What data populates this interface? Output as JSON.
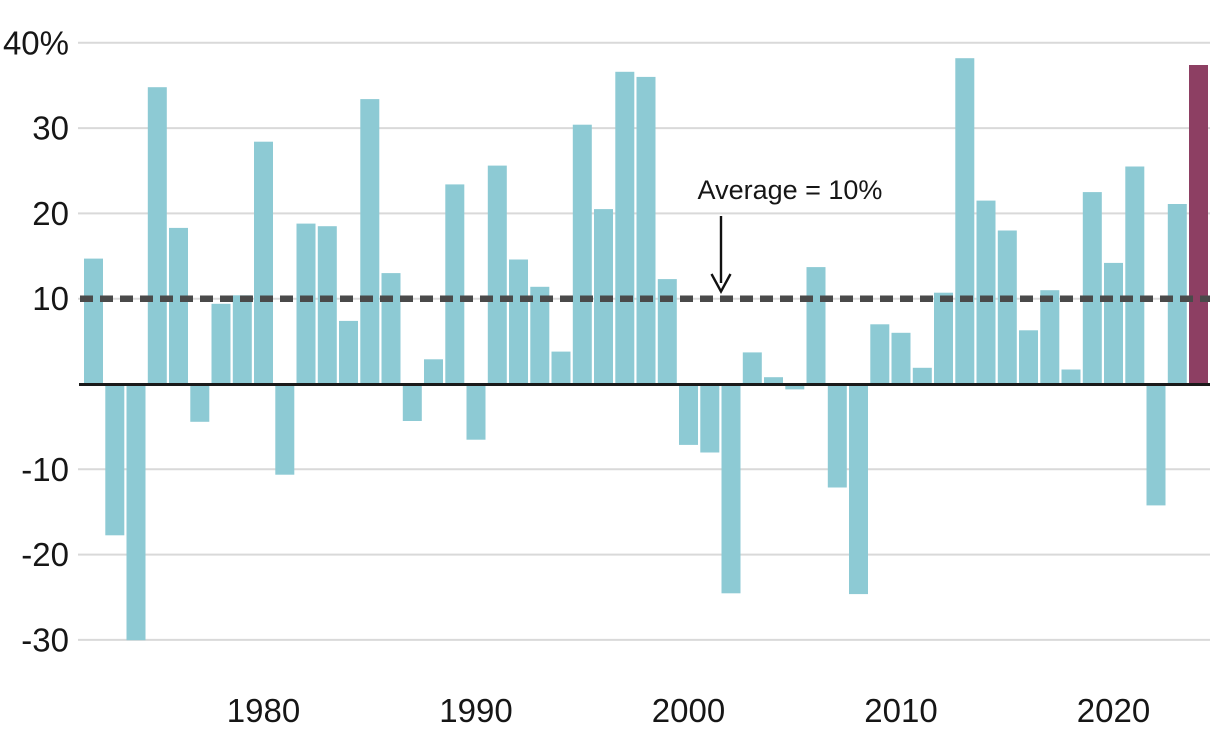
{
  "chart_data": {
    "type": "bar",
    "title": "",
    "xlabel": "",
    "ylabel": "",
    "grid": "horizontal",
    "legend": "none",
    "ylim": [
      -33,
      43
    ],
    "years": [
      1972,
      1973,
      1974,
      1975,
      1976,
      1977,
      1978,
      1979,
      1980,
      1981,
      1982,
      1983,
      1984,
      1985,
      1986,
      1987,
      1988,
      1989,
      1990,
      1991,
      1992,
      1993,
      1994,
      1995,
      1996,
      1997,
      1998,
      1999,
      2000,
      2001,
      2002,
      2003,
      2004,
      2005,
      2006,
      2007,
      2008,
      2009,
      2010,
      2011,
      2012,
      2013,
      2014,
      2015,
      2016,
      2017,
      2018,
      2019,
      2020,
      2021,
      2022,
      2023,
      2024
    ],
    "values": [
      14.7,
      -17.5,
      -29.8,
      34.8,
      18.3,
      -4.2,
      9.4,
      10.4,
      28.4,
      -10.4,
      18.8,
      18.5,
      7.4,
      33.4,
      13.0,
      -4.1,
      2.9,
      23.4,
      -6.3,
      25.6,
      14.6,
      11.4,
      3.8,
      30.4,
      20.5,
      36.6,
      36.0,
      12.3,
      -6.9,
      -7.8,
      -24.3,
      3.7,
      0.8,
      -0.4,
      13.7,
      -11.9,
      -24.4,
      7.0,
      6.0,
      1.9,
      10.7,
      38.2,
      21.5,
      18.0,
      6.3,
      11.0,
      1.7,
      22.5,
      14.2,
      25.5,
      -14.0,
      21.1,
      37.4
    ],
    "highlight_year": 2024,
    "y_axis": {
      "ticks": [
        {
          "label": "40%",
          "value": 40
        },
        {
          "label": "30",
          "value": 30
        },
        {
          "label": "20",
          "value": 20
        },
        {
          "label": "10",
          "value": 10
        },
        {
          "label": "-10",
          "value": -10
        },
        {
          "label": "-20",
          "value": -20
        },
        {
          "label": "-30",
          "value": -30
        }
      ]
    },
    "x_axis": {
      "ticks": [
        {
          "label": "1980",
          "value": 1980
        },
        {
          "label": "1990",
          "value": 1990
        },
        {
          "label": "2000",
          "value": 2000
        },
        {
          "label": "2010",
          "value": 2010
        },
        {
          "label": "2020",
          "value": 2020
        }
      ]
    },
    "annotation": {
      "text": "Average = 10%",
      "value": 10
    },
    "colors": {
      "bar": "#8dcad4",
      "highlight": "#8d3f63",
      "average_line": "#4a4a4a",
      "baseline": "#1a1a1a",
      "gridline": "#d9d9d9",
      "text": "#161616",
      "background": "#ffffff"
    }
  }
}
